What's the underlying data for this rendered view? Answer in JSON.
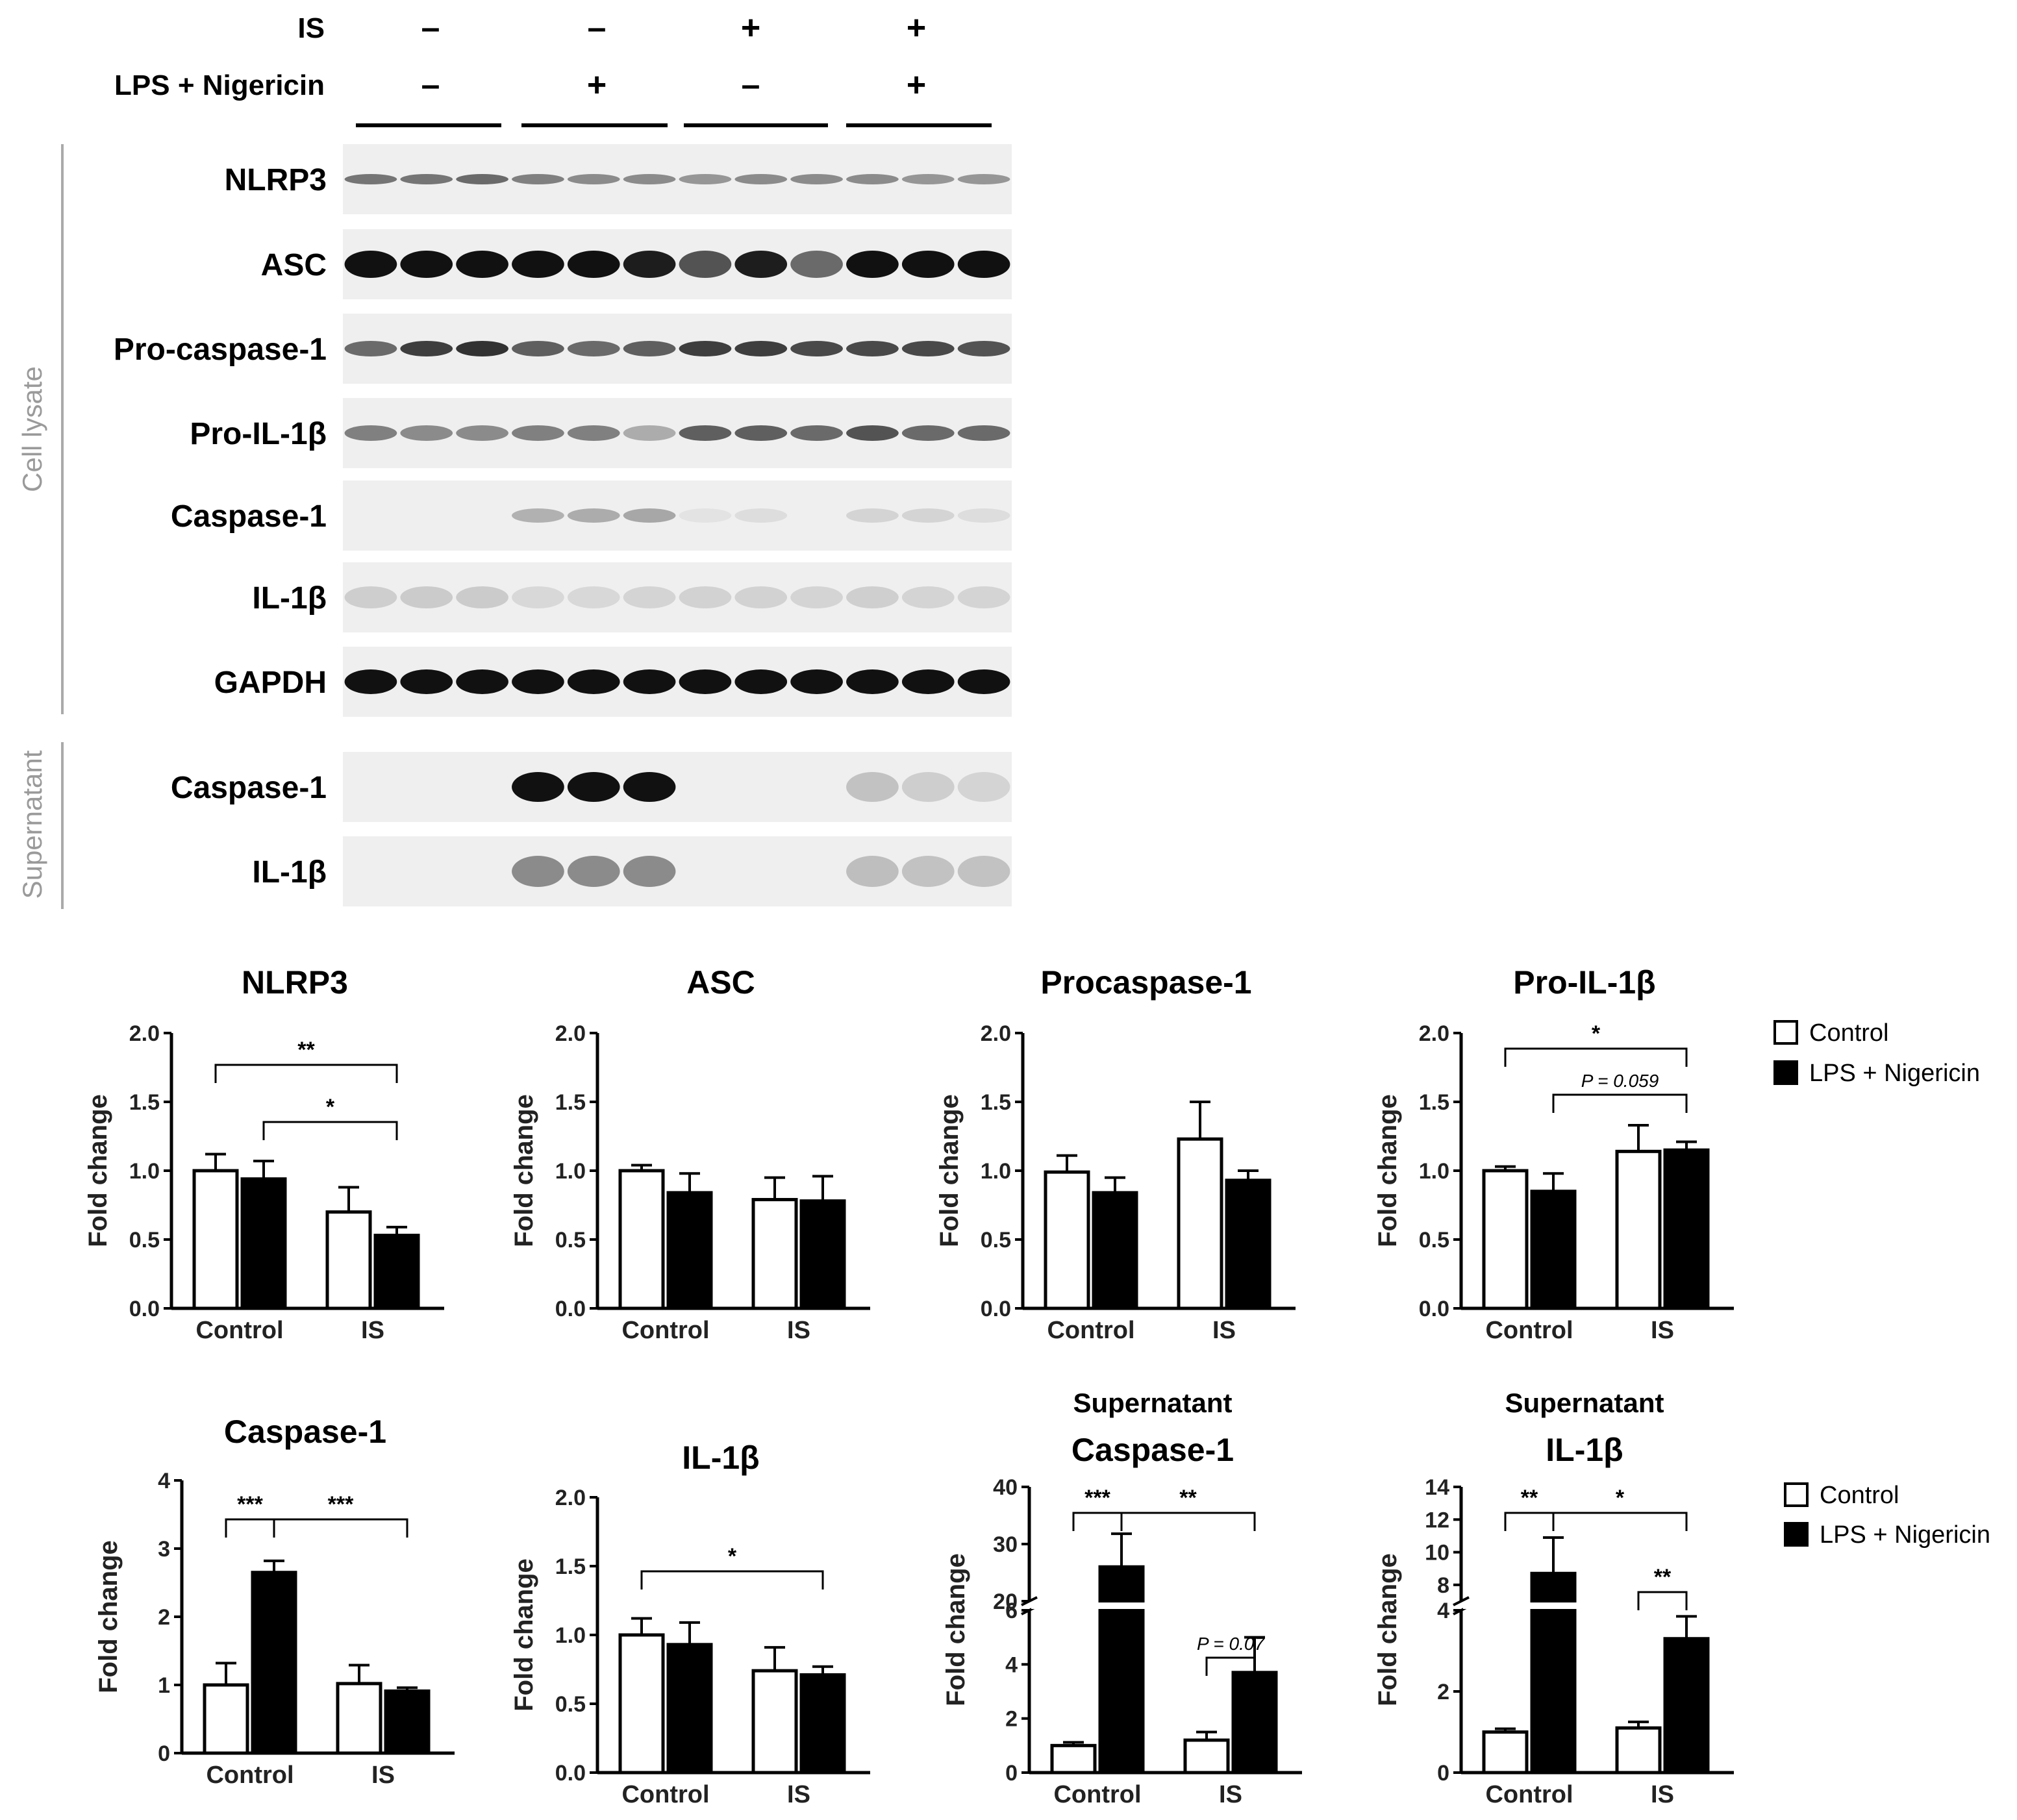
{
  "conditions": {
    "rows": [
      {
        "label": "IS",
        "signs": [
          "–",
          "–",
          "+",
          "+"
        ]
      },
      {
        "label": "LPS + Nigericin",
        "signs": [
          "–",
          "+",
          "–",
          "+"
        ]
      }
    ]
  },
  "sections": [
    {
      "label": "Cell lysate"
    },
    {
      "label": "Supernatant"
    }
  ],
  "blots": [
    {
      "label": "NLRP3"
    },
    {
      "label": "ASC"
    },
    {
      "label": "Pro-caspase-1"
    },
    {
      "label": "Pro-IL-1β"
    },
    {
      "label": "Caspase-1"
    },
    {
      "label": "IL-1β"
    },
    {
      "label": "GAPDH"
    },
    {
      "label": "Caspase-1"
    },
    {
      "label": "IL-1β"
    }
  ],
  "legends": [
    {
      "items": [
        {
          "label": "Control",
          "color": "#ffffff"
        },
        {
          "label": "LPS + Nigericin",
          "color": "#000000"
        }
      ]
    },
    {
      "items": [
        {
          "label": "Control",
          "color": "#ffffff"
        },
        {
          "label": "LPS + Nigericin",
          "color": "#000000"
        }
      ]
    }
  ],
  "chart_data": [
    {
      "type": "bar",
      "title": "NLRP3",
      "subtitle": "",
      "ylabel": "Fold change",
      "categories": [
        "Control",
        "IS"
      ],
      "ylim": [
        0,
        2.0
      ],
      "yticks": [
        "0.0",
        "0.5",
        "1.0",
        "1.5",
        "2.0"
      ],
      "series": [
        {
          "name": "Control",
          "values": [
            1.0,
            0.7
          ],
          "errors": [
            0.12,
            0.18
          ]
        },
        {
          "name": "LPS + Nigericin",
          "values": [
            0.94,
            0.53
          ],
          "errors": [
            0.13,
            0.06
          ]
        }
      ],
      "significance": [
        {
          "label": "**",
          "from": [
            0,
            0
          ],
          "to": [
            1,
            1
          ]
        },
        {
          "label": "*",
          "from": [
            0,
            1
          ],
          "to": [
            1,
            1
          ]
        }
      ]
    },
    {
      "type": "bar",
      "title": "ASC",
      "subtitle": "",
      "ylabel": "Fold change",
      "categories": [
        "Control",
        "IS"
      ],
      "ylim": [
        0,
        2.0
      ],
      "yticks": [
        "0.0",
        "0.5",
        "1.0",
        "1.5",
        "2.0"
      ],
      "series": [
        {
          "name": "Control",
          "values": [
            1.0,
            0.79
          ],
          "errors": [
            0.04,
            0.16
          ]
        },
        {
          "name": "LPS + Nigericin",
          "values": [
            0.84,
            0.78
          ],
          "errors": [
            0.14,
            0.18
          ]
        }
      ],
      "significance": []
    },
    {
      "type": "bar",
      "title": "Procaspase-1",
      "subtitle": "",
      "ylabel": "Fold change",
      "categories": [
        "Control",
        "IS"
      ],
      "ylim": [
        0,
        2.0
      ],
      "yticks": [
        "0.0",
        "0.5",
        "1.0",
        "1.5",
        "2.0"
      ],
      "series": [
        {
          "name": "Control",
          "values": [
            0.99,
            1.23
          ],
          "errors": [
            0.12,
            0.27
          ]
        },
        {
          "name": "LPS + Nigericin",
          "values": [
            0.84,
            0.93
          ],
          "errors": [
            0.11,
            0.07
          ]
        }
      ],
      "significance": []
    },
    {
      "type": "bar",
      "title": "Pro-IL-1β",
      "subtitle": "",
      "ylabel": "Fold change",
      "categories": [
        "Control",
        "IS"
      ],
      "ylim": [
        0,
        2.0
      ],
      "yticks": [
        "0.0",
        "0.5",
        "1.0",
        "1.5",
        "2.0"
      ],
      "series": [
        {
          "name": "Control",
          "values": [
            1.0,
            1.14
          ],
          "errors": [
            0.03,
            0.19
          ]
        },
        {
          "name": "LPS + Nigericin",
          "values": [
            0.85,
            1.15
          ],
          "errors": [
            0.13,
            0.06
          ]
        }
      ],
      "significance": [
        {
          "label": "*",
          "from": [
            0,
            0
          ],
          "to": [
            1,
            1
          ]
        },
        {
          "label": "P = 0.059",
          "from": [
            0,
            1
          ],
          "to": [
            1,
            1
          ]
        }
      ]
    },
    {
      "type": "bar",
      "title": "Caspase-1",
      "subtitle": "",
      "ylabel": "Fold change",
      "categories": [
        "Control",
        "IS"
      ],
      "ylim": [
        0,
        4
      ],
      "yticks": [
        "0",
        "1",
        "2",
        "3",
        "4"
      ],
      "series": [
        {
          "name": "Control",
          "values": [
            1.0,
            1.02
          ],
          "errors": [
            0.32,
            0.27
          ]
        },
        {
          "name": "LPS + Nigericin",
          "values": [
            2.65,
            0.91
          ],
          "errors": [
            0.17,
            0.05
          ]
        }
      ],
      "significance": [
        {
          "label": "***",
          "from": [
            0,
            0
          ],
          "to": [
            0,
            1
          ]
        },
        {
          "label": "***",
          "from": [
            0,
            1
          ],
          "to": [
            1,
            1
          ]
        }
      ]
    },
    {
      "type": "bar",
      "title": "IL-1β",
      "subtitle": "",
      "ylabel": "Fold change",
      "categories": [
        "Control",
        "IS"
      ],
      "ylim": [
        0,
        2.0
      ],
      "yticks": [
        "0.0",
        "0.5",
        "1.0",
        "1.5",
        "2.0"
      ],
      "series": [
        {
          "name": "Control",
          "values": [
            1.0,
            0.74
          ],
          "errors": [
            0.12,
            0.17
          ]
        },
        {
          "name": "LPS + Nigericin",
          "values": [
            0.93,
            0.71
          ],
          "errors": [
            0.16,
            0.06
          ]
        }
      ],
      "significance": [
        {
          "label": "*",
          "from": [
            0,
            0
          ],
          "to": [
            1,
            1
          ]
        }
      ]
    },
    {
      "type": "bar",
      "title": "Caspase-1",
      "subtitle": "Supernatant",
      "ylabel": "Fold change",
      "categories": [
        "Control",
        "IS"
      ],
      "broken_axis": {
        "lower": [
          0,
          6
        ],
        "upper": [
          20,
          40
        ]
      },
      "yticks": [
        "0",
        "2",
        "4",
        "6",
        "20",
        "30",
        "40"
      ],
      "series": [
        {
          "name": "Control",
          "values": [
            1.0,
            1.2
          ],
          "errors": [
            0.12,
            0.3
          ]
        },
        {
          "name": "LPS + Nigericin",
          "values": [
            26,
            3.7
          ],
          "errors": [
            5.8,
            1.3
          ]
        }
      ],
      "significance": [
        {
          "label": "***",
          "from": [
            0,
            0
          ],
          "to": [
            0,
            1
          ]
        },
        {
          "label": "**",
          "from": [
            0,
            1
          ],
          "to": [
            1,
            1
          ]
        },
        {
          "label": "P = 0.07",
          "from": [
            1,
            0
          ],
          "to": [
            1,
            1
          ]
        }
      ]
    },
    {
      "type": "bar",
      "title": "IL-1β",
      "subtitle": "Supernatant",
      "ylabel": "Fold change",
      "categories": [
        "Control",
        "IS"
      ],
      "broken_axis": {
        "lower": [
          0,
          4
        ],
        "upper": [
          7,
          14
        ]
      },
      "yticks": [
        "0",
        "2",
        "4",
        "8",
        "10",
        "12",
        "14"
      ],
      "series": [
        {
          "name": "Control",
          "values": [
            1.0,
            1.1
          ],
          "errors": [
            0.08,
            0.15
          ]
        },
        {
          "name": "LPS + Nigericin",
          "values": [
            8.7,
            3.3
          ],
          "errors": [
            2.2,
            0.55
          ]
        }
      ],
      "significance": [
        {
          "label": "**",
          "from": [
            0,
            0
          ],
          "to": [
            0,
            1
          ]
        },
        {
          "label": "*",
          "from": [
            0,
            1
          ],
          "to": [
            1,
            1
          ]
        },
        {
          "label": "**",
          "from": [
            1,
            0
          ],
          "to": [
            1,
            1
          ]
        }
      ]
    }
  ]
}
